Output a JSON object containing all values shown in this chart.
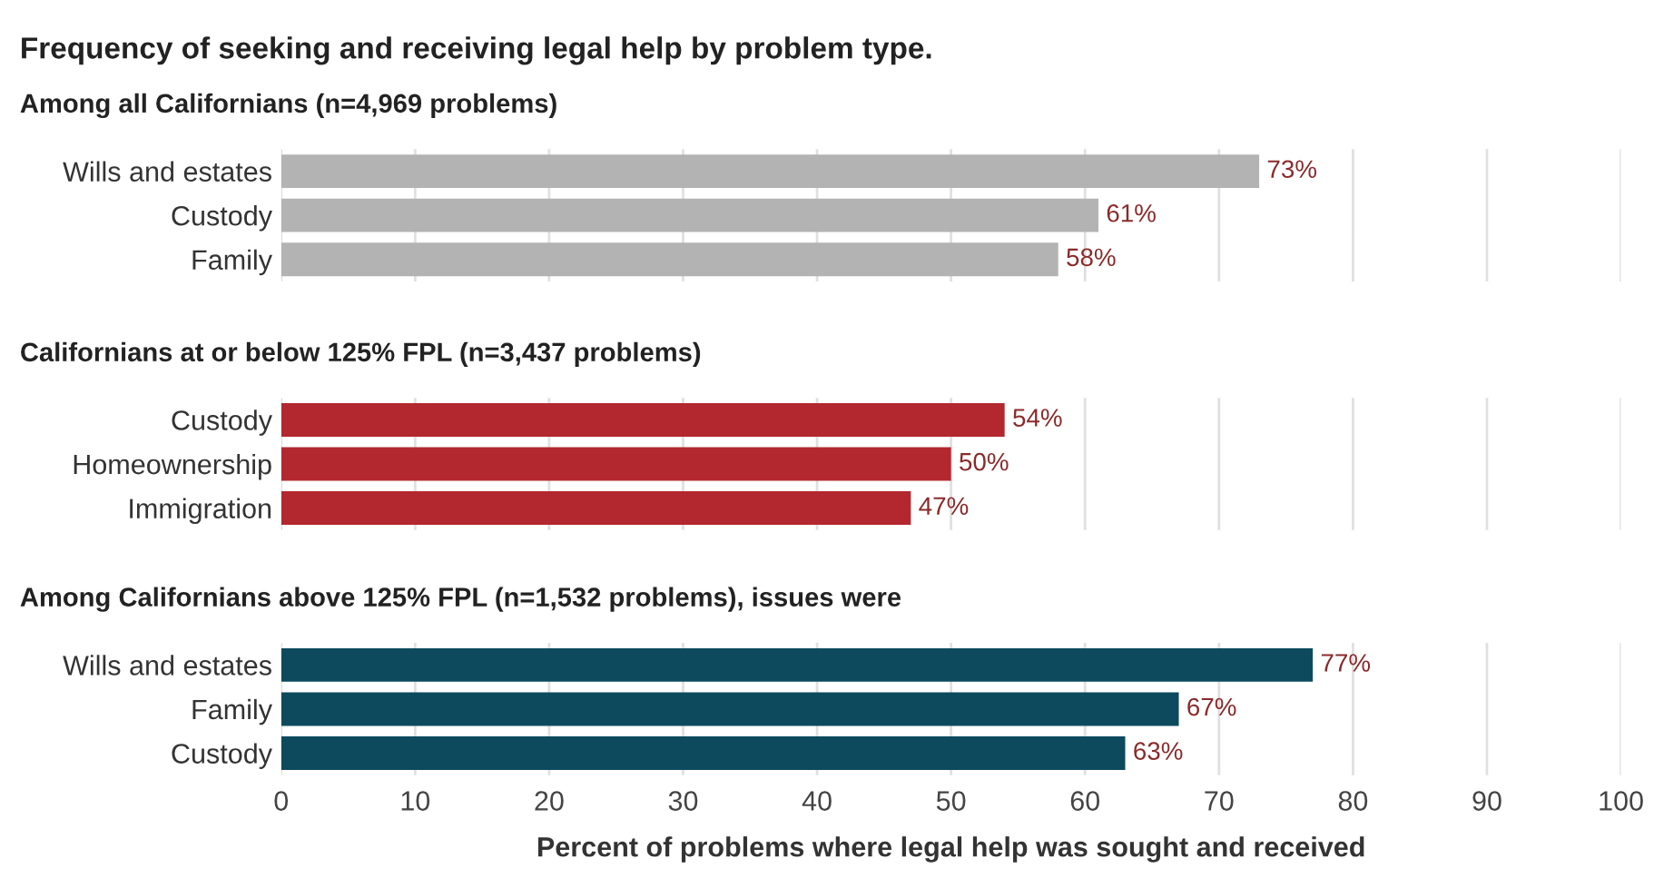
{
  "chart_data": [
    {
      "type": "bar",
      "orientation": "horizontal",
      "title": "Frequency of seeking and receiving legal help by problem type.",
      "subtitle": "Among all Californians (n=4,969 problems)",
      "categories": [
        "Wills and estates",
        "Custody",
        "Family"
      ],
      "values": [
        73,
        61,
        58
      ],
      "value_labels": [
        "73%",
        "61%",
        "58%"
      ],
      "color": "#b3b3b3",
      "xlim": [
        0,
        100
      ],
      "xticks": [
        0,
        10,
        20,
        30,
        40,
        50,
        60,
        70,
        80,
        90,
        100
      ],
      "grid": "x",
      "tick_labels": "y"
    },
    {
      "type": "bar",
      "orientation": "horizontal",
      "subtitle": "Californians at or below 125% FPL (n=3,437 problems)",
      "categories": [
        "Custody",
        "Homeownership",
        "Immigration"
      ],
      "values": [
        54,
        50,
        47
      ],
      "value_labels": [
        "54%",
        "50%",
        "47%"
      ],
      "color": "#b3282e",
      "xlim": [
        0,
        100
      ],
      "xticks": [
        0,
        10,
        20,
        30,
        40,
        50,
        60,
        70,
        80,
        90,
        100
      ],
      "grid": "x",
      "tick_labels": "y"
    },
    {
      "type": "bar",
      "orientation": "horizontal",
      "subtitle": "Among Californians above 125% FPL (n=1,532 problems), issues were",
      "categories": [
        "Wills and estates",
        "Family",
        "Custody"
      ],
      "values": [
        77,
        67,
        63
      ],
      "value_labels": [
        "77%",
        "67%",
        "63%"
      ],
      "color": "#0d4a5e",
      "xlim": [
        0,
        100
      ],
      "xticks": [
        0,
        10,
        20,
        30,
        40,
        50,
        60,
        70,
        80,
        90,
        100
      ],
      "grid": "x",
      "xlabel": "Percent of problems where legal help was sought and received"
    }
  ]
}
